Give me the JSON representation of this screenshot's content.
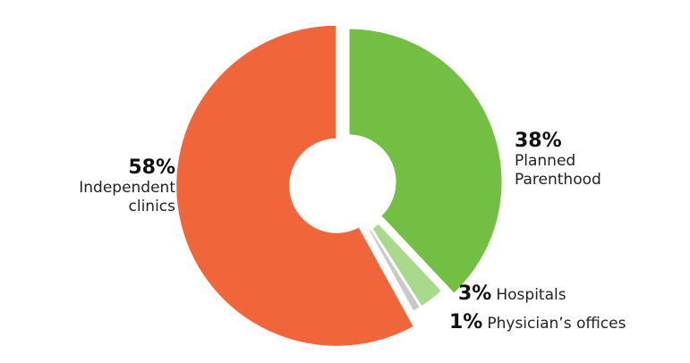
{
  "chart_data": {
    "type": "donut",
    "categories": [
      "Planned Parenthood",
      "Hospitals",
      "Physician’s offices",
      "Independent clinics"
    ],
    "values": [
      38,
      3,
      1,
      58
    ],
    "value_labels": [
      "38%",
      "3%",
      "1%",
      "58%"
    ],
    "colors": [
      "#72bf44",
      "#a9da8c",
      "#c9c9c9",
      "#f0663a"
    ]
  }
}
